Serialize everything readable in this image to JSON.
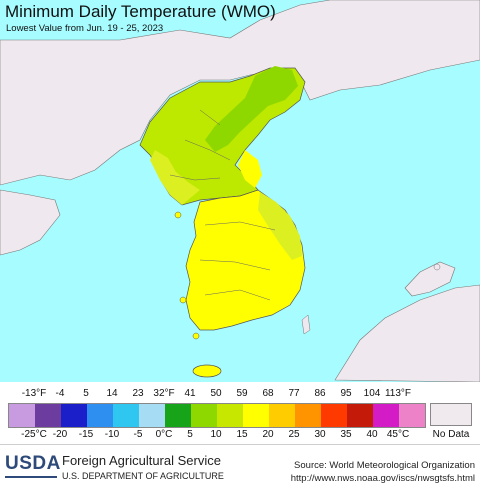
{
  "map": {
    "title": "Minimum Daily Temperature (WMO)",
    "subtitle": "Lowest Value from Jun. 19 - 25, 2023",
    "region": "Korean Peninsula",
    "colors": {
      "ocean": "#a7fcff",
      "land_outside": "#efe8ee",
      "band_10_15": "#bde800",
      "band_5_10": "#8ed800",
      "band_15_20": "#dcef20",
      "band_20_25": "#ffff00",
      "water_body": "#b8f5f5"
    }
  },
  "legend": {
    "fahrenheit_labels": [
      "-13°F",
      "-4",
      "5",
      "14",
      "23",
      "32°F",
      "41",
      "50",
      "59",
      "68",
      "77",
      "86",
      "95",
      "104",
      "113°F"
    ],
    "celsius_labels": [
      "-25°C",
      "-20",
      "-15",
      "-10",
      "-5",
      "0°C",
      "5",
      "10",
      "15",
      "20",
      "25",
      "30",
      "35",
      "40",
      "45°C"
    ],
    "swatch_colors": [
      "#c89be1",
      "#6c3d9f",
      "#1a1fc9",
      "#2f8ff0",
      "#2fc6f0",
      "#a7dcf5",
      "#17a31a",
      "#8ed800",
      "#c7e600",
      "#ffff00",
      "#ffcc00",
      "#ff9400",
      "#ff3a00",
      "#c41a0a",
      "#d31bc6",
      "#ee82c9"
    ],
    "no_data_label": "No Data",
    "no_data_color": "#f0eaef"
  },
  "footer": {
    "logo_text": "USDA",
    "agency": "Foreign Agricultural Service",
    "department": "U.S. DEPARTMENT OF AGRICULTURE",
    "source": "Source: World Meteorological Organization",
    "url": "http://www.nws.noaa.gov/iscs/nwsgtsfs.html"
  }
}
